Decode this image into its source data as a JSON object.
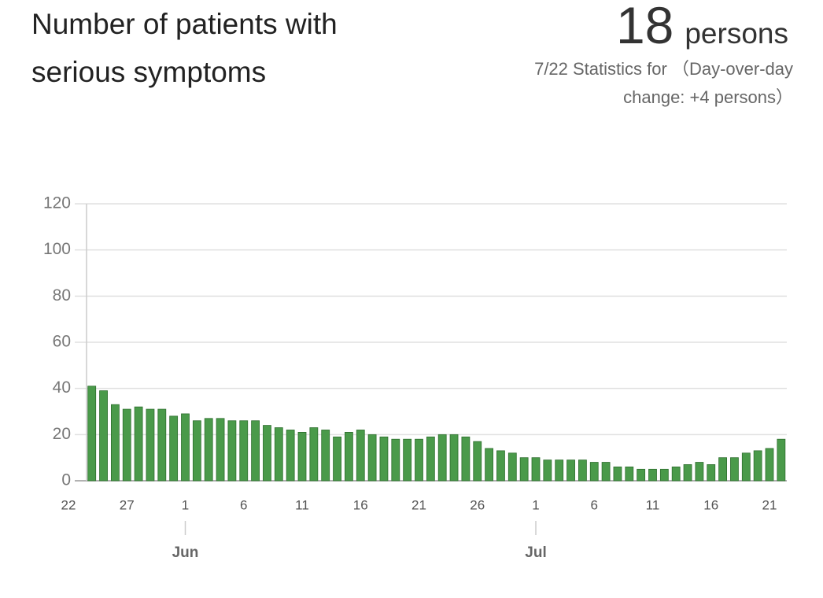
{
  "header": {
    "title": "Number of patients with serious symptoms",
    "value": 18,
    "unit": "persons",
    "date_note": "7/22 Statistics for",
    "change": "（Day-over-day change: +4 persons）"
  },
  "chart_data": {
    "type": "bar",
    "color": "#4a9a4a",
    "categories": [
      "22",
      null,
      null,
      null,
      null,
      "27",
      null,
      null,
      null,
      null,
      "1",
      null,
      null,
      null,
      null,
      "6",
      null,
      null,
      null,
      null,
      "11",
      null,
      null,
      null,
      null,
      "16",
      null,
      null,
      null,
      null,
      "21",
      null,
      null,
      null,
      null,
      "26",
      null,
      null,
      null,
      null,
      "1",
      null,
      null,
      null,
      null,
      "6",
      null,
      null,
      null,
      null,
      "11",
      null,
      null,
      null,
      null,
      "16",
      null,
      null,
      null,
      null,
      "21",
      null
    ],
    "values": [
      null,
      null,
      41,
      39,
      33,
      31,
      32,
      31,
      31,
      28,
      29,
      26,
      27,
      27,
      26,
      26,
      26,
      24,
      23,
      22,
      21,
      23,
      22,
      19,
      21,
      22,
      20,
      19,
      18,
      18,
      18,
      19,
      20,
      20,
      19,
      17,
      14,
      13,
      12,
      10,
      10,
      9,
      9,
      9,
      9,
      8,
      8,
      6,
      6,
      5,
      5,
      5,
      6,
      7,
      8,
      7,
      10,
      10,
      12,
      13,
      14,
      18
    ],
    "month_labels": [
      "Jun",
      "Jul"
    ],
    "ylim": [
      0,
      120
    ],
    "yticks": [
      0,
      20,
      40,
      60,
      80,
      100,
      120
    ],
    "grid": true
  }
}
